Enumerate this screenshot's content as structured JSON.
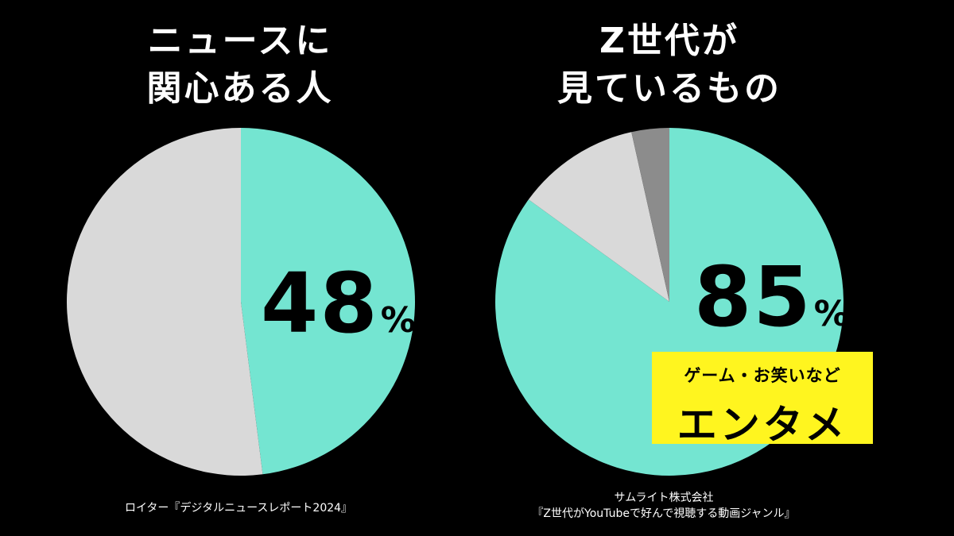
{
  "left": {
    "title_line1": "ニュースに",
    "title_line2": "関心ある人",
    "value": "48",
    "unit": "%",
    "source": "ロイター『デジタルニュースレポート2024』"
  },
  "right": {
    "title_line1": "Z世代が",
    "title_line2": "見ているもの",
    "value": "85",
    "unit": "%",
    "callout_sub": "ゲーム・お笑いなど",
    "callout_main": "エンタメ",
    "source_line1": "サムライト株式会社",
    "source_line2": "『Z世代がYouTubeで好んで視聴する動画ジャンル』"
  },
  "colors": {
    "highlight": "#74e5d1",
    "other": "#d9d9d9",
    "other_dark": "#8c8c8c",
    "callout": "#fff51f"
  },
  "chart_data": [
    {
      "type": "pie",
      "title": "ニュースに関心ある人",
      "slices": [
        {
          "label": "48%",
          "value": 48,
          "color": "#74e5d1"
        },
        {
          "label": "",
          "value": 52,
          "color": "#d9d9d9"
        }
      ]
    },
    {
      "type": "pie",
      "title": "Z世代が見ているもの",
      "slices": [
        {
          "label": "85%",
          "value": 85,
          "color": "#74e5d1"
        },
        {
          "label": "",
          "value": 11.5,
          "color": "#d9d9d9"
        },
        {
          "label": "",
          "value": 3.5,
          "color": "#8c8c8c"
        }
      ]
    }
  ]
}
